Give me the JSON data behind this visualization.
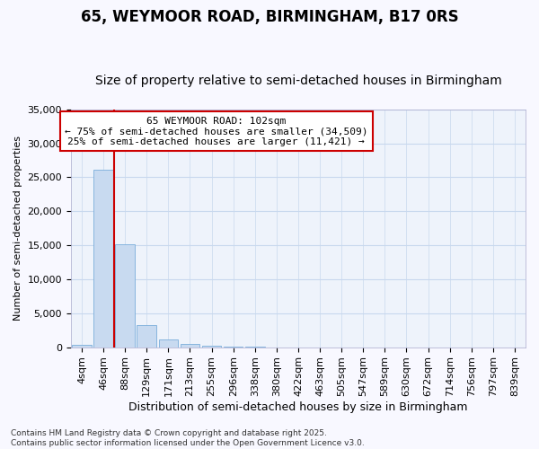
{
  "title": "65, WEYMOOR ROAD, BIRMINGHAM, B17 0RS",
  "subtitle": "Size of property relative to semi-detached houses in Birmingham",
  "xlabel": "Distribution of semi-detached houses by size in Birmingham",
  "ylabel": "Number of semi-detached properties",
  "bin_labels": [
    "4sqm",
    "46sqm",
    "88sqm",
    "129sqm",
    "171sqm",
    "213sqm",
    "255sqm",
    "296sqm",
    "338sqm",
    "380sqm",
    "422sqm",
    "463sqm",
    "505sqm",
    "547sqm",
    "589sqm",
    "630sqm",
    "672sqm",
    "714sqm",
    "756sqm",
    "797sqm",
    "839sqm"
  ],
  "bar_values": [
    400,
    26100,
    15100,
    3300,
    1200,
    500,
    180,
    55,
    15,
    5,
    2,
    1,
    0,
    0,
    0,
    0,
    0,
    0,
    0,
    0,
    0
  ],
  "bar_color": "#c8daf0",
  "bar_edge_color": "#7aadda",
  "grid_color": "#c8d8ee",
  "plot_bg_color": "#eef3fb",
  "fig_bg_color": "#f8f8ff",
  "vline_x_bin": 1.5,
  "annotation_text_line1": "65 WEYMOOR ROAD: 102sqm",
  "annotation_text_line2": "← 75% of semi-detached houses are smaller (34,509)",
  "annotation_text_line3": "25% of semi-detached houses are larger (11,421) →",
  "annotation_box_color": "#ffffff",
  "annotation_box_edge_color": "#cc0000",
  "vline_color": "#cc0000",
  "ylim": [
    0,
    35000
  ],
  "yticks": [
    0,
    5000,
    10000,
    15000,
    20000,
    25000,
    30000,
    35000
  ],
  "footer_line1": "Contains HM Land Registry data © Crown copyright and database right 2025.",
  "footer_line2": "Contains public sector information licensed under the Open Government Licence v3.0.",
  "title_fontsize": 12,
  "subtitle_fontsize": 10,
  "xlabel_fontsize": 9,
  "ylabel_fontsize": 8,
  "tick_fontsize": 8,
  "annotation_fontsize": 8,
  "footer_fontsize": 6.5
}
